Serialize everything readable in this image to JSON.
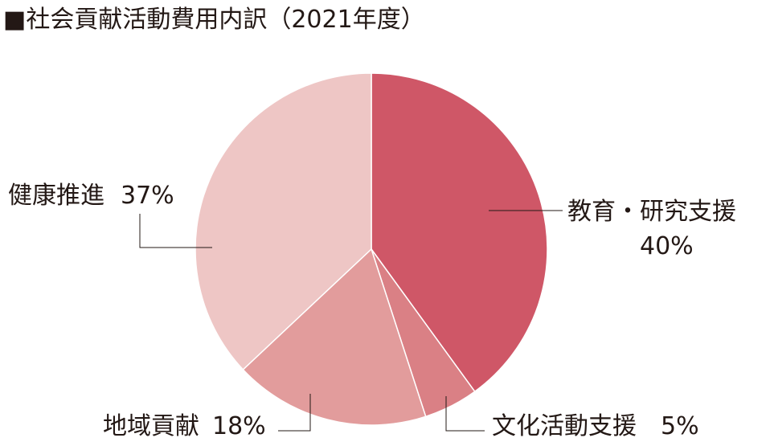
{
  "chart_data": {
    "type": "pie",
    "title": "■社会貢献活動費用内訳（2021年度）",
    "legend": "none",
    "slices": [
      {
        "label": "教育・研究支援",
        "value": 40,
        "value_label": "40%",
        "color": "#cf5767"
      },
      {
        "label": "文化活動支援",
        "value": 5,
        "value_label": "5%",
        "color": "#da8085"
      },
      {
        "label": "地域貢献",
        "value": 18,
        "value_label": "18%",
        "color": "#e29c9c"
      },
      {
        "label": "健康推進",
        "value": 37,
        "value_label": "37%",
        "color": "#eec6c5"
      }
    ]
  }
}
